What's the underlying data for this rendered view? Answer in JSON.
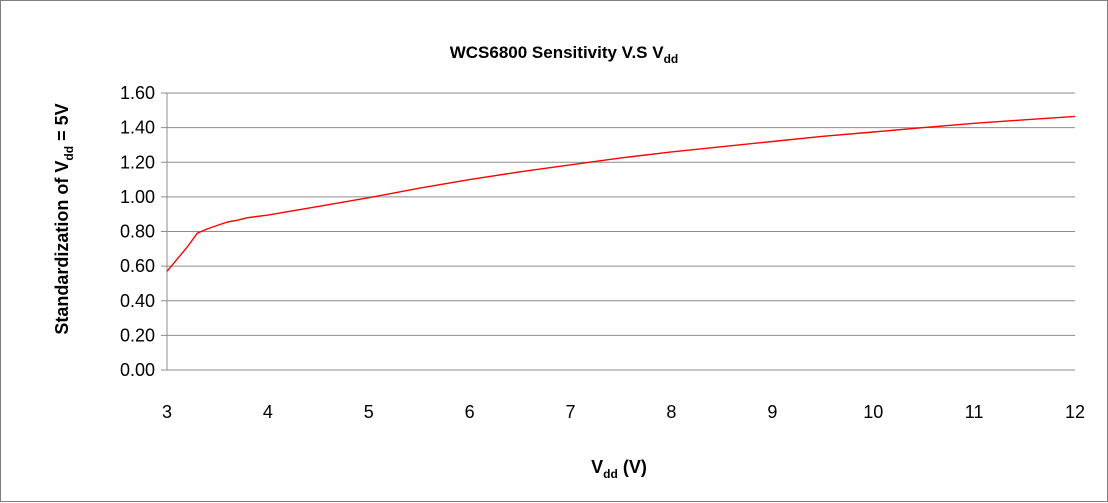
{
  "chart_data": {
    "type": "line",
    "title": {
      "main": "WCS6800 Sensitivity V.S V",
      "subscript": "dd"
    },
    "xlabel": {
      "main": "V",
      "subscript": "dd",
      "suffix": " (V)"
    },
    "ylabel": {
      "main": "Standardization of V",
      "subscript": "dd",
      "suffix": " = 5V"
    },
    "xlim": [
      3,
      12
    ],
    "ylim": [
      0,
      1.6
    ],
    "x_ticks": [
      "3",
      "4",
      "5",
      "6",
      "7",
      "8",
      "9",
      "10",
      "11",
      "12"
    ],
    "y_ticks": [
      "0.00",
      "0.20",
      "0.40",
      "0.60",
      "0.80",
      "1.00",
      "1.20",
      "1.40",
      "1.60"
    ],
    "grid": {
      "horizontal": true,
      "vertical": false
    },
    "legend": "none",
    "series": [
      {
        "color": "#ff0000",
        "x": [
          3.0,
          3.1,
          3.2,
          3.3,
          3.4,
          3.5,
          3.6,
          3.7,
          3.8,
          4.0,
          4.5,
          5.0,
          5.5,
          6.0,
          6.5,
          7.0,
          7.5,
          8.0,
          8.5,
          9.0,
          9.5,
          10.0,
          10.5,
          11.0,
          11.5,
          12.0
        ],
        "y": [
          0.57,
          0.64,
          0.71,
          0.79,
          0.815,
          0.835,
          0.855,
          0.865,
          0.88,
          0.895,
          0.945,
          0.995,
          1.05,
          1.1,
          1.145,
          1.185,
          1.225,
          1.26,
          1.29,
          1.32,
          1.35,
          1.375,
          1.4,
          1.425,
          1.445,
          1.465
        ]
      }
    ]
  }
}
